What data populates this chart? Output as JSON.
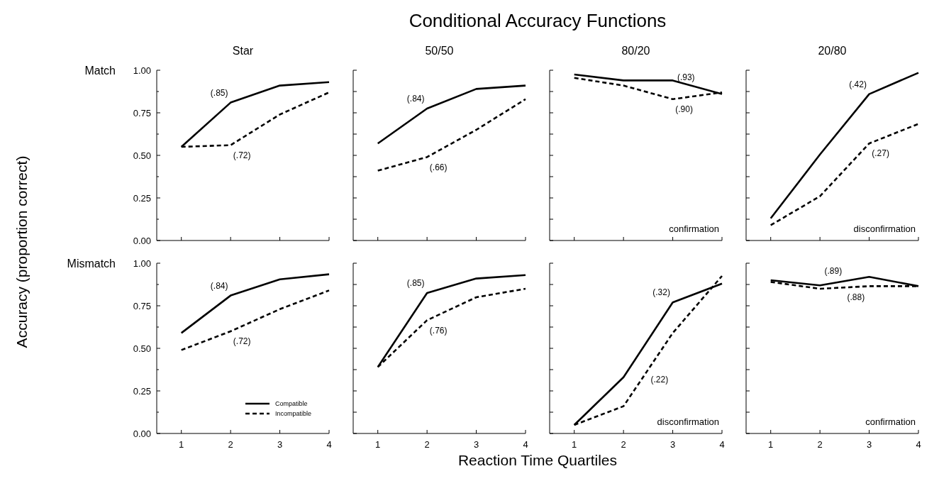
{
  "chart_data": [
    {
      "type": "other",
      "title": "Conditional Accuracy Functions",
      "xlabel": "Reaction Time Quartiles",
      "ylabel": "Accuracy (proportion correct)"
    },
    {
      "type": "line",
      "title": "Star",
      "ylabel": "Match",
      "x": [
        1,
        2,
        3,
        4
      ],
      "xlim": [
        0.5,
        4
      ],
      "xticks": [
        1,
        2,
        3,
        4
      ],
      "ylim": [
        0,
        1
      ],
      "yticks": [
        {
          "value": 0,
          "label": "0.00"
        },
        {
          "value": 0.125,
          "label": null
        },
        {
          "value": 0.25,
          "label": "0.25"
        },
        {
          "value": 0.375,
          "label": null
        },
        {
          "value": 0.5,
          "label": "0.50"
        },
        {
          "value": 0.625,
          "label": null
        },
        {
          "value": 0.75,
          "label": "0.75"
        },
        {
          "value": 0.875,
          "label": null
        },
        {
          "value": 1,
          "label": "1.00"
        }
      ],
      "tick_labels": "y",
      "series": [
        {
          "color": "#000000",
          "line_style": "solid",
          "values": [
            0.55,
            0.81,
            0.91,
            0.93
          ]
        },
        {
          "color": "#000000",
          "line_style": "dashed",
          "values": [
            0.55,
            0.56,
            0.74,
            0.87
          ]
        }
      ],
      "annotations": [
        {
          "text": "(.85)",
          "x": 2,
          "y": 0.81
        },
        {
          "text": "(.72)",
          "x": 2,
          "y": 0.56
        }
      ]
    },
    {
      "type": "line",
      "title": "50/50",
      "x": [
        1,
        2,
        3,
        4
      ],
      "xlim": [
        0.5,
        4
      ],
      "xticks": [
        1,
        2,
        3,
        4
      ],
      "ylim": [
        0,
        1
      ],
      "yticks": [
        0,
        0.125,
        0.25,
        0.375,
        0.5,
        0.625,
        0.75,
        0.875,
        1
      ],
      "tick_labels": false,
      "series": [
        {
          "color": "#000000",
          "line_style": "solid",
          "values": [
            0.57,
            0.775,
            0.89,
            0.91
          ]
        },
        {
          "color": "#000000",
          "line_style": "dashed",
          "values": [
            0.41,
            0.49,
            0.65,
            0.83
          ]
        }
      ],
      "annotations": [
        {
          "text": "(.84)",
          "x": 2,
          "y": 0.775
        },
        {
          "text": "(.66)",
          "x": 2,
          "y": 0.49
        }
      ]
    },
    {
      "type": "line",
      "title": "80/20",
      "x": [
        1,
        2,
        3,
        4
      ],
      "xlim": [
        0.5,
        4
      ],
      "xticks": [
        1,
        2,
        3,
        4
      ],
      "ylim": [
        0,
        1
      ],
      "yticks": [
        0,
        0.125,
        0.25,
        0.375,
        0.5,
        0.625,
        0.75,
        0.875,
        1
      ],
      "tick_labels": false,
      "series": [
        {
          "color": "#000000",
          "line_style": "solid",
          "values": [
            0.975,
            0.94,
            0.94,
            0.86
          ]
        },
        {
          "color": "#000000",
          "line_style": "dashed",
          "values": [
            0.955,
            0.91,
            0.83,
            0.87
          ]
        }
      ],
      "annotations": [
        {
          "text": "(.93)",
          "x": 3.5,
          "y": 0.9
        },
        {
          "text": "(.90)",
          "x": 3,
          "y": 0.83
        },
        "confirmation"
      ]
    },
    {
      "type": "line",
      "title": "20/80",
      "x": [
        1,
        2,
        3,
        4
      ],
      "xlim": [
        0.5,
        4
      ],
      "xticks": [
        1,
        2,
        3,
        4
      ],
      "ylim": [
        0,
        1
      ],
      "yticks": [
        0,
        0.125,
        0.25,
        0.375,
        0.5,
        0.625,
        0.75,
        0.875,
        1
      ],
      "tick_labels": false,
      "series": [
        {
          "color": "#000000",
          "line_style": "solid",
          "values": [
            0.13,
            0.505,
            0.86,
            0.985
          ]
        },
        {
          "color": "#000000",
          "line_style": "dashed",
          "values": [
            0.09,
            0.26,
            0.57,
            0.685
          ]
        }
      ],
      "annotations": [
        {
          "text": "(.42)",
          "x": 3,
          "y": 0.86
        },
        {
          "text": "(.27)",
          "x": 3,
          "y": 0.57
        },
        "disconfirmation"
      ]
    },
    {
      "type": "line",
      "ylabel": "Mismatch",
      "x": [
        1,
        2,
        3,
        4
      ],
      "xlim": [
        0.5,
        4
      ],
      "xticks": [
        1,
        2,
        3,
        4
      ],
      "ylim": [
        0,
        1
      ],
      "yticks": [
        {
          "value": 0,
          "label": "0.00"
        },
        {
          "value": 0.125,
          "label": null
        },
        {
          "value": 0.25,
          "label": "0.25"
        },
        {
          "value": 0.375,
          "label": null
        },
        {
          "value": 0.5,
          "label": "0.50"
        },
        {
          "value": 0.625,
          "label": null
        },
        {
          "value": 0.75,
          "label": "0.75"
        },
        {
          "value": 0.875,
          "label": null
        },
        {
          "value": 1,
          "label": "1.00"
        }
      ],
      "legend": "bottom right",
      "series": [
        {
          "name": "Compatible",
          "color": "#000000",
          "line_style": "solid",
          "values": [
            0.59,
            0.81,
            0.905,
            0.935
          ]
        },
        {
          "name": "Incompatible",
          "color": "#000000",
          "line_style": "dashed",
          "values": [
            0.49,
            0.6,
            0.73,
            0.84
          ]
        }
      ],
      "annotations": [
        {
          "text": "(.84)",
          "x": 2,
          "y": 0.81
        },
        {
          "text": "(.72)",
          "x": 2,
          "y": 0.6
        }
      ]
    },
    {
      "type": "line",
      "x": [
        1,
        2,
        3,
        4
      ],
      "xlim": [
        0.5,
        4
      ],
      "xticks": [
        1,
        2,
        3,
        4
      ],
      "ylim": [
        0,
        1
      ],
      "yticks": [
        0,
        0.125,
        0.25,
        0.375,
        0.5,
        0.625,
        0.75,
        0.875,
        1
      ],
      "tick_labels": "x",
      "series": [
        {
          "color": "#000000",
          "line_style": "solid",
          "values": [
            0.39,
            0.825,
            0.91,
            0.93
          ]
        },
        {
          "color": "#000000",
          "line_style": "dashed",
          "values": [
            0.39,
            0.665,
            0.8,
            0.85
          ]
        }
      ],
      "annotations": [
        {
          "text": "(.85)",
          "x": 2,
          "y": 0.825
        },
        {
          "text": "(.76)",
          "x": 2,
          "y": 0.665
        }
      ]
    },
    {
      "type": "line",
      "x": [
        1,
        2,
        3,
        4
      ],
      "xlim": [
        0.5,
        4
      ],
      "xticks": [
        1,
        2,
        3,
        4
      ],
      "ylim": [
        0,
        1
      ],
      "yticks": [
        0,
        0.125,
        0.25,
        0.375,
        0.5,
        0.625,
        0.75,
        0.875,
        1
      ],
      "tick_labels": "x",
      "series": [
        {
          "color": "#000000",
          "line_style": "solid",
          "values": [
            0.05,
            0.33,
            0.77,
            0.88
          ]
        },
        {
          "color": "#000000",
          "line_style": "dashed",
          "values": [
            0.05,
            0.16,
            0.59,
            0.925
          ]
        }
      ],
      "annotations": [
        {
          "text": "(.32)",
          "x": 3,
          "y": 0.77
        },
        {
          "text": "(.22)",
          "x": 2.5,
          "y": 0.375
        },
        "disconfirmation"
      ]
    },
    {
      "type": "line",
      "x": [
        1,
        2,
        3,
        4
      ],
      "xlim": [
        0.5,
        4
      ],
      "xticks": [
        1,
        2,
        3,
        4
      ],
      "ylim": [
        0,
        1
      ],
      "yticks": [
        0,
        0.125,
        0.25,
        0.375,
        0.5,
        0.625,
        0.75,
        0.875,
        1
      ],
      "tick_labels": "x",
      "series": [
        {
          "color": "#000000",
          "line_style": "solid",
          "values": [
            0.9,
            0.87,
            0.92,
            0.865
          ]
        },
        {
          "color": "#000000",
          "line_style": "dashed",
          "values": [
            0.89,
            0.85,
            0.865,
            0.865
          ]
        }
      ],
      "annotations": [
        {
          "text": "(.89)",
          "x": 2.5,
          "y": 0.895
        },
        {
          "text": "(.88)",
          "x": 2.5,
          "y": 0.8575
        },
        "confirmation"
      ]
    }
  ]
}
